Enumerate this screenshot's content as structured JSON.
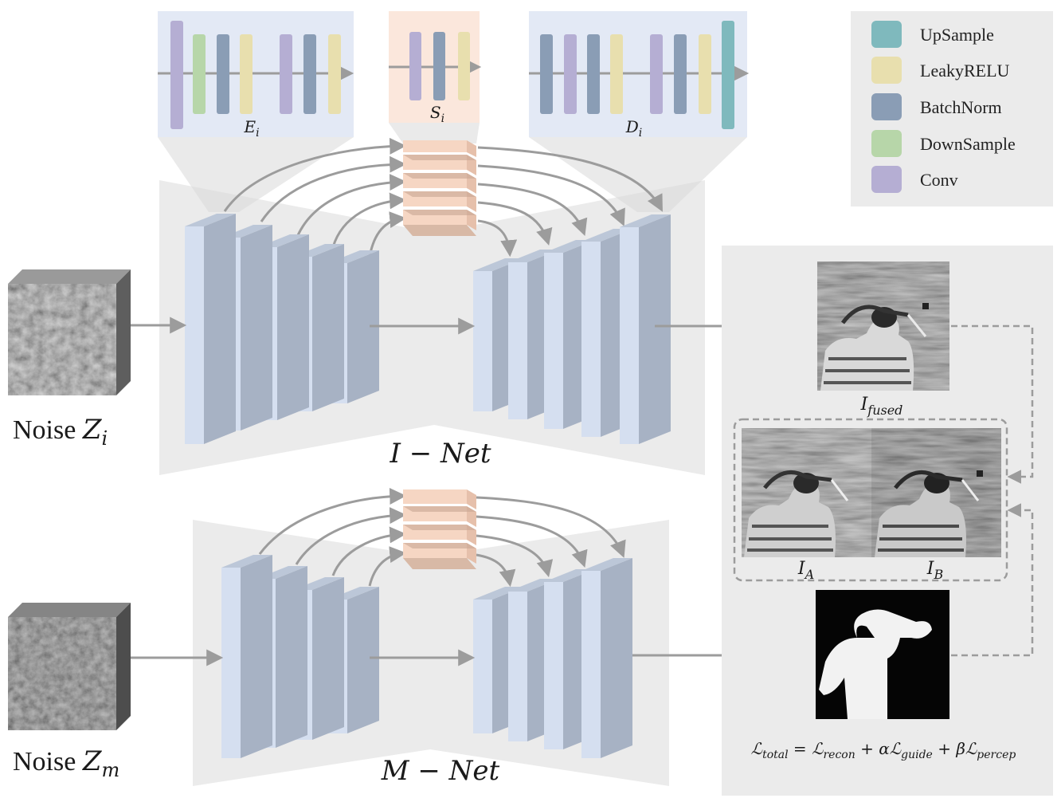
{
  "colors": {
    "upsample": "#7fb9bd",
    "leakyrelu": "#e8dfae",
    "batchnorm": "#8a9db5",
    "downsample": "#b7d6a9",
    "conv": "#b5aed3",
    "block_front": "#d5dff0",
    "block_side": "#a7b2c4",
    "skip_front": "#f6d6c3",
    "panel_bg": "#ebebeb",
    "arrow": "#9c9c9c"
  },
  "legend": [
    {
      "label": "UpSample",
      "color": "#7fb9bd",
      "icon": "upsample-swatch"
    },
    {
      "label": "LeakyRELU",
      "color": "#e8dfae",
      "icon": "leakyrelu-swatch"
    },
    {
      "label": "BatchNorm",
      "color": "#8a9db5",
      "icon": "batchnorm-swatch"
    },
    {
      "label": "DownSample",
      "color": "#b7d6a9",
      "icon": "downsample-swatch"
    },
    {
      "label": "Conv",
      "color": "#b5aed3",
      "icon": "conv-swatch"
    }
  ],
  "modules": {
    "encoder": {
      "symbol": "E",
      "subscript": "i"
    },
    "skip": {
      "symbol": "S",
      "subscript": "i"
    },
    "decoder": {
      "symbol": "D",
      "subscript": "i"
    }
  },
  "inputs": {
    "noise_i": {
      "prefix": "Noise ",
      "symbol": "Z",
      "subscript": "i"
    },
    "noise_m": {
      "prefix": "Noise ",
      "symbol": "Z",
      "subscript": "m"
    }
  },
  "networks": {
    "inet": "I − Net",
    "mnet": "M − Net"
  },
  "images": {
    "fused": {
      "symbol": "I",
      "subscript": "fused"
    },
    "a": {
      "symbol": "I",
      "subscript": "A"
    },
    "b": {
      "symbol": "I",
      "subscript": "B"
    }
  },
  "loss": {
    "total": {
      "symbol": "ℒ",
      "subscript": "total"
    },
    "eq": " = ",
    "recon": {
      "symbol": "ℒ",
      "subscript": "recon"
    },
    "plus1": " + ",
    "alpha": "α",
    "guide": {
      "symbol": "ℒ",
      "subscript": "guide"
    },
    "plus2": " + ",
    "beta": "β",
    "percep": {
      "symbol": "ℒ",
      "subscript": "percep"
    }
  }
}
